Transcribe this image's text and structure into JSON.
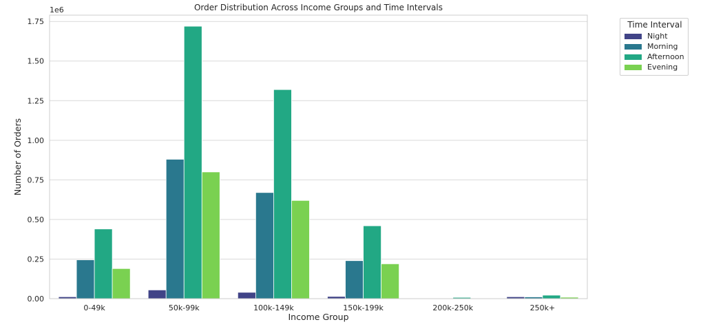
{
  "chart_data": {
    "type": "bar",
    "title": "Order Distribution Across Income Groups and Time Intervals",
    "xlabel": "Income Group",
    "ylabel": "Number of Orders",
    "y_offset_label": "1e6",
    "categories": [
      "0-49k",
      "50k-99k",
      "100k-149k",
      "150k-199k",
      "200k-250k",
      "250k+"
    ],
    "ylim": [
      0,
      1.79
    ],
    "yticks": [
      0.0,
      0.25,
      0.5,
      0.75,
      1.0,
      1.25,
      1.5,
      1.75
    ],
    "ytick_labels": [
      "0.00",
      "0.25",
      "0.50",
      "0.75",
      "1.00",
      "1.25",
      "1.50",
      "1.75"
    ],
    "grid": true,
    "legend_title": "Time Interval",
    "legend_position": "outside top-right",
    "series": [
      {
        "name": "Night",
        "color": "#414487",
        "values": [
          0.012,
          0.055,
          0.04,
          0.014,
          0.001,
          0.012
        ]
      },
      {
        "name": "Morning",
        "color": "#2a788e",
        "values": [
          0.245,
          0.88,
          0.67,
          0.24,
          0.003,
          0.011
        ]
      },
      {
        "name": "Afternoon",
        "color": "#22a884",
        "values": [
          0.44,
          1.72,
          1.32,
          0.46,
          0.008,
          0.022
        ]
      },
      {
        "name": "Evening",
        "color": "#7ad151",
        "values": [
          0.19,
          0.8,
          0.62,
          0.22,
          0.002,
          0.009
        ]
      }
    ]
  }
}
